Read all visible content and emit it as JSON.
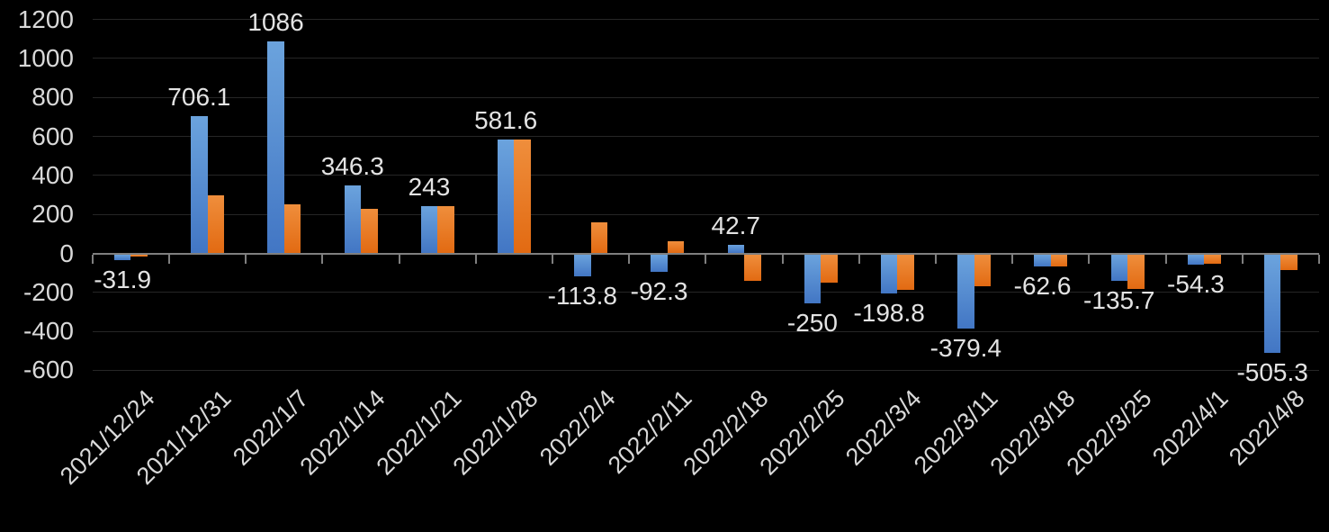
{
  "chart_data": {
    "type": "bar",
    "title": "",
    "xlabel": "",
    "ylabel": "",
    "background_color": "#000000",
    "grid": true,
    "legend": "none",
    "categories": [
      "2021/12/24",
      "2021/12/31",
      "2022/1/7",
      "2022/1/14",
      "2022/1/21",
      "2022/1/28",
      "2022/2/4",
      "2022/2/11",
      "2022/2/18",
      "2022/2/25",
      "2022/3/4",
      "2022/3/11",
      "2022/3/18",
      "2022/3/25",
      "2022/4/1",
      "2022/4/8"
    ],
    "series": [
      {
        "name": "blue",
        "color": "#5b9bd5",
        "values": [
          -31.9,
          706.1,
          1086,
          346.3,
          243,
          581.6,
          -113.8,
          -92.3,
          42.7,
          -250,
          -198.8,
          -379.4,
          -62.6,
          -135.7,
          -54.3,
          -505.3
        ]
      },
      {
        "name": "orange",
        "color": "#ed7d31",
        "values": [
          -8,
          300,
          252,
          230,
          241,
          585,
          158,
          62,
          -135,
          -144,
          -183,
          -162,
          -64,
          -179,
          -49,
          -81
        ]
      }
    ],
    "data_labels": [
      "-31.9",
      "706.1",
      "1086",
      "346.3",
      "243",
      "581.6",
      "-113.8",
      "-92.3",
      "42.7",
      "-250",
      "-198.8",
      "-379.4",
      "-62.6",
      "-135.7",
      "-54.3",
      "-505.3"
    ],
    "y_axis": {
      "min": -600,
      "max": 1200,
      "step": 200,
      "tick_labels": [
        "1200",
        "1000",
        "800",
        "600",
        "400",
        "200",
        "0",
        "-200",
        "-400",
        "-600"
      ]
    },
    "colors": {
      "text": "#d9d9d9",
      "gridline": "#262626",
      "axis": "#7f7f7f"
    }
  }
}
